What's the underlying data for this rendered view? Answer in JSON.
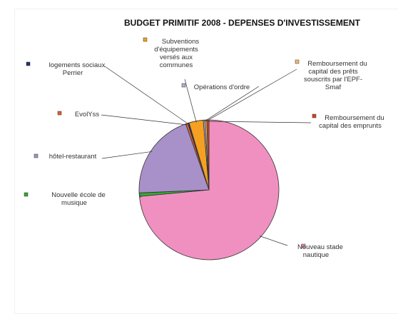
{
  "chart_data": {
    "type": "pie",
    "title": "BUDGET PRIMITIF 2008 - DEPENSES  D'INVESTISSEMENT",
    "slices": [
      {
        "name": "Nouveau stade nautique",
        "value": 73.5,
        "color": "#f090c0",
        "lines": [
          "Nouveau stade",
          "nautique"
        ]
      },
      {
        "name": "Nouvelle école de musique",
        "value": 0.8,
        "color": "#33aa33",
        "lines": [
          "Nouvelle école de",
          "musique"
        ]
      },
      {
        "name": "hôtel-restaurant",
        "value": 20.3,
        "color": "#a890c8",
        "lines": [
          "hôtel-restaurant"
        ]
      },
      {
        "name": "EvolYss",
        "value": 0.5,
        "color": "#e06030",
        "lines": [
          "EvolYss"
        ]
      },
      {
        "name": "logements sociaux Perrier",
        "value": 0.3,
        "color": "#203080",
        "lines": [
          "logements sociaux",
          "Perrier"
        ]
      },
      {
        "name": "Subventions d'équipements versés aux communes",
        "value": 3.3,
        "color": "#f5a020",
        "lines": [
          "Subventions",
          "d'équipements",
          "versés aux",
          "communes"
        ]
      },
      {
        "name": "Opérations d'ordre",
        "value": 0.4,
        "color": "#b0b0d0",
        "lines": [
          "Opérations d'ordre"
        ]
      },
      {
        "name": "Remboursement du capital des prêts souscrits par l'EPF-Smaf",
        "value": 0.4,
        "color": "#f5b878",
        "lines": [
          "Remboursement du",
          "capital des prêts",
          "souscrits par l'EPF-",
          "Smaf"
        ]
      },
      {
        "name": "Remboursement du capital des emprunts",
        "value": 0.5,
        "color": "#d04818",
        "lines": [
          "Remboursement du",
          "capital des emprunts"
        ]
      }
    ],
    "legend": "labels next to slices with leader lines"
  }
}
